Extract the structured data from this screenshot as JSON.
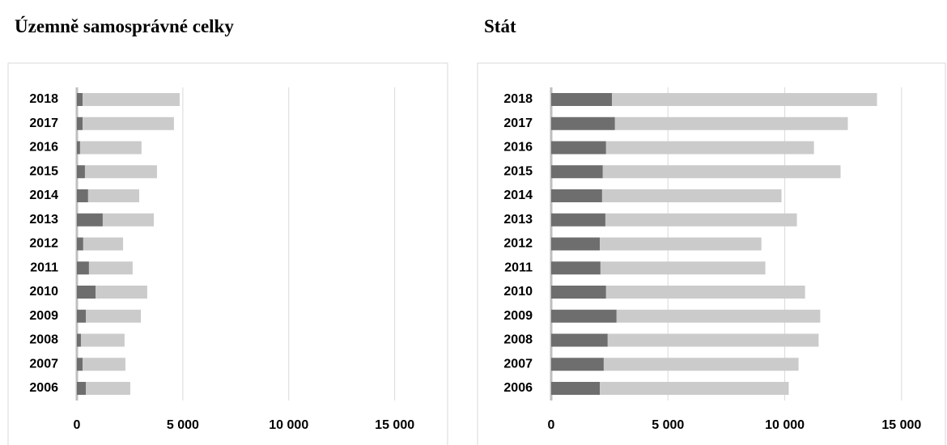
{
  "chart_data": [
    {
      "type": "bar",
      "orientation": "horizontal",
      "stacked": true,
      "title": "Územně samosprávné celky",
      "categories": [
        "2018",
        "2017",
        "2016",
        "2015",
        "2014",
        "2013",
        "2012",
        "2011",
        "2010",
        "2009",
        "2008",
        "2007",
        "2006"
      ],
      "series": [
        {
          "color": "#6e6e6e",
          "values": [
            270,
            270,
            150,
            380,
            530,
            1220,
            300,
            570,
            880,
            420,
            190,
            270,
            420
          ]
        },
        {
          "color": "#cbcbcb",
          "values": [
            4580,
            4310,
            2900,
            3400,
            2410,
            2410,
            1880,
            2060,
            2440,
            2600,
            2060,
            2020,
            2100
          ]
        }
      ],
      "xlim": [
        0,
        17000
      ],
      "xticks": [
        0,
        {
          "value": 5000,
          "label": "5 000"
        },
        {
          "value": 10000,
          "label": "10 000"
        },
        {
          "value": 15000,
          "label": "15 000"
        }
      ],
      "grid": true
    },
    {
      "type": "bar",
      "orientation": "horizontal",
      "stacked": true,
      "title": "Stát",
      "categories": [
        "2018",
        "2017",
        "2016",
        "2015",
        "2014",
        "2013",
        "2012",
        "2011",
        "2010",
        "2009",
        "2008",
        "2007",
        "2006"
      ],
      "series": [
        {
          "color": "#6e6e6e",
          "values": [
            2600,
            2730,
            2350,
            2210,
            2180,
            2320,
            2080,
            2110,
            2350,
            2800,
            2420,
            2250,
            2080
          ]
        },
        {
          "color": "#cbcbcb",
          "values": [
            11350,
            9970,
            8900,
            10180,
            7680,
            8200,
            6920,
            7060,
            8520,
            8720,
            9030,
            8340,
            8090
          ]
        }
      ],
      "xlim": [
        0,
        16600
      ],
      "xticks": [
        0,
        {
          "value": 5000,
          "label": "5 000"
        },
        {
          "value": 10000,
          "label": "10 000"
        },
        {
          "value": 15000,
          "label": "15 000"
        }
      ],
      "grid": true
    }
  ]
}
